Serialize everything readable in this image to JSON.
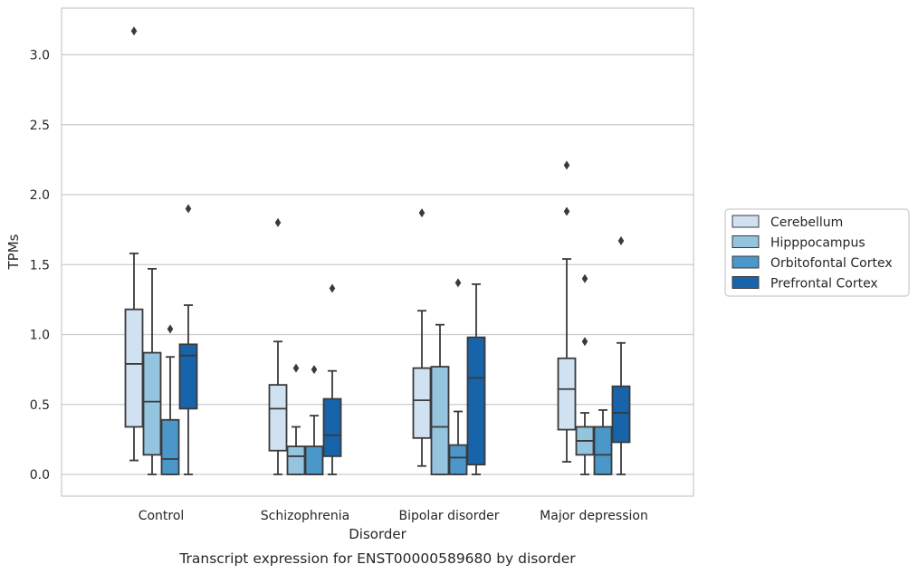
{
  "caption": "Transcript expression for ENST00000589680 by disorder",
  "chart_data": {
    "type": "box",
    "xlabel": "Disorder",
    "ylabel": "TPMs",
    "ylim": [
      -0.15,
      3.35
    ],
    "yticks": [
      "0.0",
      "0.5",
      "1.0",
      "1.5",
      "2.0",
      "2.5",
      "3.0"
    ],
    "grid": "horizontal",
    "legend_position": "right",
    "categories": [
      "Control",
      "Schizophrenia",
      "Bipolar disorder",
      "Major depression"
    ],
    "series": [
      {
        "name": "Cerebellum",
        "color": "#d0e1f1",
        "boxes": [
          {
            "whislo": 0.1,
            "q1": 0.34,
            "med": 0.79,
            "q3": 1.18,
            "whishi": 1.58,
            "fliers": [
              3.17
            ]
          },
          {
            "whislo": 0.0,
            "q1": 0.17,
            "med": 0.47,
            "q3": 0.64,
            "whishi": 0.95,
            "fliers": [
              1.8
            ]
          },
          {
            "whislo": 0.06,
            "q1": 0.26,
            "med": 0.53,
            "q3": 0.76,
            "whishi": 1.17,
            "fliers": [
              1.87
            ]
          },
          {
            "whislo": 0.09,
            "q1": 0.32,
            "med": 0.61,
            "q3": 0.83,
            "whishi": 1.54,
            "fliers": [
              1.88,
              2.21
            ]
          }
        ]
      },
      {
        "name": "Hipppocampus",
        "color": "#94c4de",
        "boxes": [
          {
            "whislo": 0.0,
            "q1": 0.14,
            "med": 0.52,
            "q3": 0.87,
            "whishi": 1.47,
            "fliers": []
          },
          {
            "whislo": 0.0,
            "q1": 0.0,
            "med": 0.13,
            "q3": 0.2,
            "whishi": 0.34,
            "fliers": [
              0.76
            ]
          },
          {
            "whislo": 0.0,
            "q1": 0.0,
            "med": 0.34,
            "q3": 0.77,
            "whishi": 1.07,
            "fliers": []
          },
          {
            "whislo": 0.0,
            "q1": 0.14,
            "med": 0.24,
            "q3": 0.34,
            "whishi": 0.44,
            "fliers": [
              0.95,
              1.4
            ]
          }
        ]
      },
      {
        "name": "Orbitofontal Cortex",
        "color": "#4b97c9",
        "boxes": [
          {
            "whislo": 0.0,
            "q1": 0.0,
            "med": 0.11,
            "q3": 0.39,
            "whishi": 0.84,
            "fliers": [
              1.04
            ]
          },
          {
            "whislo": 0.0,
            "q1": 0.0,
            "med": 0.0,
            "q3": 0.2,
            "whishi": 0.42,
            "fliers": [
              0.75
            ]
          },
          {
            "whislo": 0.0,
            "q1": 0.0,
            "med": 0.12,
            "q3": 0.21,
            "whishi": 0.45,
            "fliers": [
              1.37
            ]
          },
          {
            "whislo": 0.0,
            "q1": 0.0,
            "med": 0.14,
            "q3": 0.34,
            "whishi": 0.46,
            "fliers": []
          }
        ]
      },
      {
        "name": "Prefrontal Cortex",
        "color": "#1764ab",
        "boxes": [
          {
            "whislo": 0.0,
            "q1": 0.47,
            "med": 0.85,
            "q3": 0.93,
            "whishi": 1.21,
            "fliers": [
              1.9
            ]
          },
          {
            "whislo": 0.0,
            "q1": 0.13,
            "med": 0.28,
            "q3": 0.54,
            "whishi": 0.74,
            "fliers": [
              1.33
            ]
          },
          {
            "whislo": 0.0,
            "q1": 0.07,
            "med": 0.69,
            "q3": 0.98,
            "whishi": 1.36,
            "fliers": []
          },
          {
            "whislo": 0.0,
            "q1": 0.23,
            "med": 0.44,
            "q3": 0.63,
            "whishi": 0.94,
            "fliers": [
              1.67
            ]
          }
        ]
      }
    ]
  }
}
